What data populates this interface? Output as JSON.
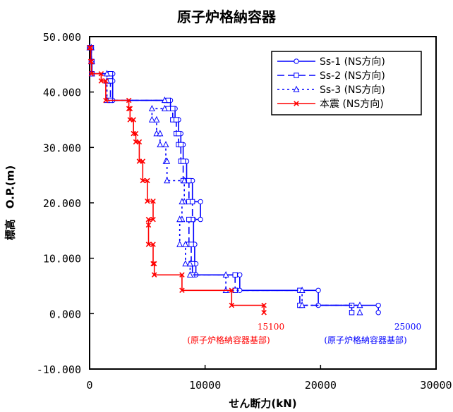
{
  "chart_data": {
    "type": "line",
    "title": "原子炉格納容器",
    "xlabel": "せん断力(kN)",
    "ylabel": "標高　O.P.(m)",
    "xlim": [
      0,
      30000
    ],
    "ylim": [
      -10,
      50
    ],
    "x_ticks": [
      "0",
      "10000",
      "20000",
      "30000"
    ],
    "y_ticks": [
      "-10.000",
      "0.000",
      "10.000",
      "20.000",
      "30.000",
      "40.000",
      "50.000"
    ],
    "grid": false,
    "legend_position": "top-right",
    "series": [
      {
        "name": "Ss-1 (NS方向)",
        "color": "#0000ff",
        "dash": "solid",
        "marker": "circle",
        "points": [
          [
            0,
            48
          ],
          [
            150,
            48
          ],
          [
            150,
            45.5
          ],
          [
            200,
            45.5
          ],
          [
            200,
            43.3
          ],
          [
            2000,
            43.3
          ],
          [
            2000,
            42
          ],
          [
            2000,
            38.5
          ],
          [
            7000,
            38.5
          ],
          [
            7000,
            37
          ],
          [
            7400,
            37
          ],
          [
            7400,
            35
          ],
          [
            7700,
            35
          ],
          [
            7700,
            32.5
          ],
          [
            7900,
            32.5
          ],
          [
            7900,
            30.5
          ],
          [
            8100,
            30.5
          ],
          [
            8100,
            27.5
          ],
          [
            8400,
            27.5
          ],
          [
            8400,
            24
          ],
          [
            8900,
            24
          ],
          [
            8900,
            20.2
          ],
          [
            9600,
            20.2
          ],
          [
            9600,
            17
          ],
          [
            9000,
            17
          ],
          [
            9000,
            12.5
          ],
          [
            9100,
            12.5
          ],
          [
            9100,
            9
          ],
          [
            9200,
            9
          ],
          [
            9200,
            7
          ],
          [
            13000,
            7
          ],
          [
            13000,
            4.2
          ],
          [
            19800,
            4.2
          ],
          [
            19800,
            1.5
          ],
          [
            25000,
            1.5
          ],
          [
            25000,
            0.2
          ]
        ]
      },
      {
        "name": "Ss-2 (NS方向)",
        "color": "#0000ff",
        "dash": "dashed",
        "marker": "square",
        "points": [
          [
            0,
            48
          ],
          [
            150,
            48
          ],
          [
            150,
            45.5
          ],
          [
            200,
            45.5
          ],
          [
            200,
            43.3
          ],
          [
            1800,
            43.3
          ],
          [
            1800,
            42
          ],
          [
            1800,
            38.5
          ],
          [
            6800,
            38.5
          ],
          [
            6800,
            37
          ],
          [
            7200,
            37
          ],
          [
            7200,
            35
          ],
          [
            7500,
            35
          ],
          [
            7500,
            32.5
          ],
          [
            7700,
            32.5
          ],
          [
            7700,
            30.5
          ],
          [
            7900,
            30.5
          ],
          [
            7900,
            27.5
          ],
          [
            8100,
            27.5
          ],
          [
            8100,
            24
          ],
          [
            8600,
            24
          ],
          [
            8600,
            20.2
          ],
          [
            8900,
            20.2
          ],
          [
            8900,
            17
          ],
          [
            8600,
            17
          ],
          [
            8600,
            12.5
          ],
          [
            8800,
            12.5
          ],
          [
            8800,
            9
          ],
          [
            8900,
            9
          ],
          [
            8900,
            7
          ],
          [
            12600,
            7
          ],
          [
            12600,
            4.2
          ],
          [
            18200,
            4.2
          ],
          [
            18200,
            1.5
          ],
          [
            22700,
            1.5
          ],
          [
            22700,
            0.2
          ]
        ]
      },
      {
        "name": "Ss-3 (NS方向)",
        "color": "#0000ff",
        "dash": "dotted",
        "marker": "triangle",
        "points": [
          [
            0,
            48
          ],
          [
            150,
            48
          ],
          [
            150,
            45.5
          ],
          [
            200,
            45.5
          ],
          [
            200,
            43.3
          ],
          [
            1500,
            43.3
          ],
          [
            1500,
            42
          ],
          [
            1500,
            38.5
          ],
          [
            6500,
            38.5
          ],
          [
            6500,
            37
          ],
          [
            5400,
            37
          ],
          [
            5400,
            35
          ],
          [
            5800,
            35
          ],
          [
            5800,
            32.5
          ],
          [
            6100,
            32.5
          ],
          [
            6100,
            30.5
          ],
          [
            6600,
            30.5
          ],
          [
            6600,
            27.5
          ],
          [
            6700,
            27.5
          ],
          [
            6700,
            24
          ],
          [
            8200,
            24
          ],
          [
            8200,
            20.2
          ],
          [
            8000,
            20.2
          ],
          [
            8000,
            17
          ],
          [
            7800,
            17
          ],
          [
            7800,
            12.5
          ],
          [
            8300,
            12.5
          ],
          [
            8300,
            9
          ],
          [
            8700,
            9
          ],
          [
            8700,
            7
          ],
          [
            11800,
            7
          ],
          [
            11800,
            4.2
          ],
          [
            18400,
            4.2
          ],
          [
            18400,
            1.5
          ],
          [
            23400,
            1.5
          ],
          [
            23400,
            0.2
          ]
        ]
      },
      {
        "name": "本震 (NS方向)",
        "color": "#ff0000",
        "dash": "solid",
        "marker": "x",
        "points": [
          [
            0,
            48
          ],
          [
            100,
            48
          ],
          [
            100,
            45.5
          ],
          [
            150,
            45.5
          ],
          [
            150,
            43.3
          ],
          [
            1000,
            43.3
          ],
          [
            1000,
            42
          ],
          [
            1400,
            42
          ],
          [
            1400,
            38.5
          ],
          [
            3400,
            38.5
          ],
          [
            3400,
            37
          ],
          [
            3500,
            37
          ],
          [
            3500,
            35
          ],
          [
            3800,
            35
          ],
          [
            3800,
            32.5
          ],
          [
            4000,
            32.5
          ],
          [
            4000,
            31
          ],
          [
            4300,
            31
          ],
          [
            4300,
            27.5
          ],
          [
            4600,
            27.5
          ],
          [
            4600,
            24
          ],
          [
            5000,
            24
          ],
          [
            5000,
            20.3
          ],
          [
            5500,
            20.3
          ],
          [
            5500,
            17
          ],
          [
            5100,
            17
          ],
          [
            5100,
            16
          ],
          [
            5100,
            12.5
          ],
          [
            5500,
            12.5
          ],
          [
            5500,
            9
          ],
          [
            5600,
            9
          ],
          [
            5600,
            7
          ],
          [
            8000,
            7
          ],
          [
            8000,
            4.2
          ],
          [
            12300,
            4.2
          ],
          [
            12300,
            1.5
          ],
          [
            15100,
            1.5
          ],
          [
            15100,
            0.2
          ]
        ]
      }
    ],
    "annotations": [
      {
        "value": "15100",
        "label": "(原子炉格納容器基部)",
        "color": "#ff0000",
        "x": 15100
      },
      {
        "value": "25000",
        "label": "(原子炉格納容器基部)",
        "color": "#0000ff",
        "x": 25000
      }
    ]
  }
}
